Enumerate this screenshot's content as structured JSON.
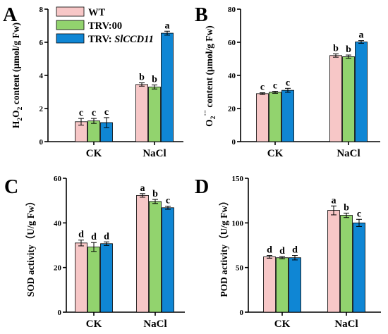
{
  "colors": {
    "WT": "#f7c7c7",
    "TRV:00": "#92d36e",
    "TRV:SlCCD11": "#0f86d4",
    "edge": "#000000"
  },
  "legend": [
    {
      "label": "WT",
      "color": "#f7c7c7"
    },
    {
      "label": "TRV:00",
      "color": "#92d36e"
    },
    {
      "label_prefix": "TRV: ",
      "label_italic": "SlCCD11",
      "color": "#0f86d4"
    }
  ],
  "chart_data": [
    {
      "panel": "A",
      "type": "bar",
      "categories": [
        "CK",
        "NaCl"
      ],
      "ylabel": "H2O2 content (μmol/g Fw)",
      "ylabel_parts": {
        "a": "H",
        "sub1": "2",
        "b": "O",
        "sub2": "2",
        "c": " content (μmol/g Fw)"
      },
      "ylim": [
        0,
        8
      ],
      "yticks": [
        0,
        2,
        4,
        6,
        8
      ],
      "series": [
        {
          "name": "WT",
          "values": [
            1.2,
            3.45
          ],
          "errors": [
            0.2,
            0.1
          ],
          "sig": [
            "c",
            "b"
          ]
        },
        {
          "name": "TRV:00",
          "values": [
            1.25,
            3.3
          ],
          "errors": [
            0.15,
            0.12
          ],
          "sig": [
            "c",
            "b"
          ]
        },
        {
          "name": "TRV:SlCCD11",
          "values": [
            1.15,
            6.55
          ],
          "errors": [
            0.3,
            0.12
          ],
          "sig": [
            "c",
            "a"
          ]
        }
      ]
    },
    {
      "panel": "B",
      "type": "bar",
      "categories": [
        "CK",
        "NaCl"
      ],
      "ylabel": "O2·− content (μmol/g Fw)",
      "ylabel_parts": {
        "a": "O",
        "sub1": "2",
        "sup1": "·−",
        "c": " content (μmol/g Fw)"
      },
      "ylim": [
        0,
        80
      ],
      "yticks": [
        0,
        20,
        40,
        60,
        80
      ],
      "series": [
        {
          "name": "WT",
          "values": [
            29,
            52
          ],
          "errors": [
            0.5,
            1.0
          ],
          "sig": [
            "c",
            "b"
          ]
        },
        {
          "name": "TRV:00",
          "values": [
            29.8,
            51.3
          ],
          "errors": [
            0.6,
            1.0
          ],
          "sig": [
            "c",
            "b"
          ]
        },
        {
          "name": "TRV:SlCCD11",
          "values": [
            31,
            60.2
          ],
          "errors": [
            1.2,
            0.8
          ],
          "sig": [
            "c",
            "a"
          ]
        }
      ]
    },
    {
      "panel": "C",
      "type": "bar",
      "categories": [
        "CK",
        "NaCl"
      ],
      "ylabel": "SOD activity（U/g Fw）",
      "ylim": [
        0,
        60
      ],
      "yticks": [
        0,
        20,
        40,
        60
      ],
      "series": [
        {
          "name": "WT",
          "values": [
            31,
            52.3
          ],
          "errors": [
            1.3,
            0.8
          ],
          "sig": [
            "d",
            "a"
          ]
        },
        {
          "name": "TRV:00",
          "values": [
            29.2,
            49.6
          ],
          "errors": [
            2.0,
            0.9
          ],
          "sig": [
            "d",
            "b"
          ]
        },
        {
          "name": "TRV:SlCCD11",
          "values": [
            30.7,
            46.8
          ],
          "errors": [
            0.8,
            0.7
          ],
          "sig": [
            "d",
            "c"
          ]
        }
      ]
    },
    {
      "panel": "D",
      "type": "bar",
      "categories": [
        "CK",
        "NaCl"
      ],
      "ylabel": "POD activity（U/g Fw）",
      "ylim": [
        0,
        150
      ],
      "yticks": [
        0,
        50,
        100,
        150
      ],
      "series": [
        {
          "name": "WT",
          "values": [
            62,
            114
          ],
          "errors": [
            1.5,
            5
          ],
          "sig": [
            "d",
            "a"
          ]
        },
        {
          "name": "TRV:00",
          "values": [
            61,
            108.5
          ],
          "errors": [
            1.2,
            2.5
          ],
          "sig": [
            "d",
            "b"
          ]
        },
        {
          "name": "TRV:SlCCD11",
          "values": [
            61,
            100
          ],
          "errors": [
            2.5,
            4
          ],
          "sig": [
            "d",
            "c"
          ]
        }
      ]
    }
  ]
}
